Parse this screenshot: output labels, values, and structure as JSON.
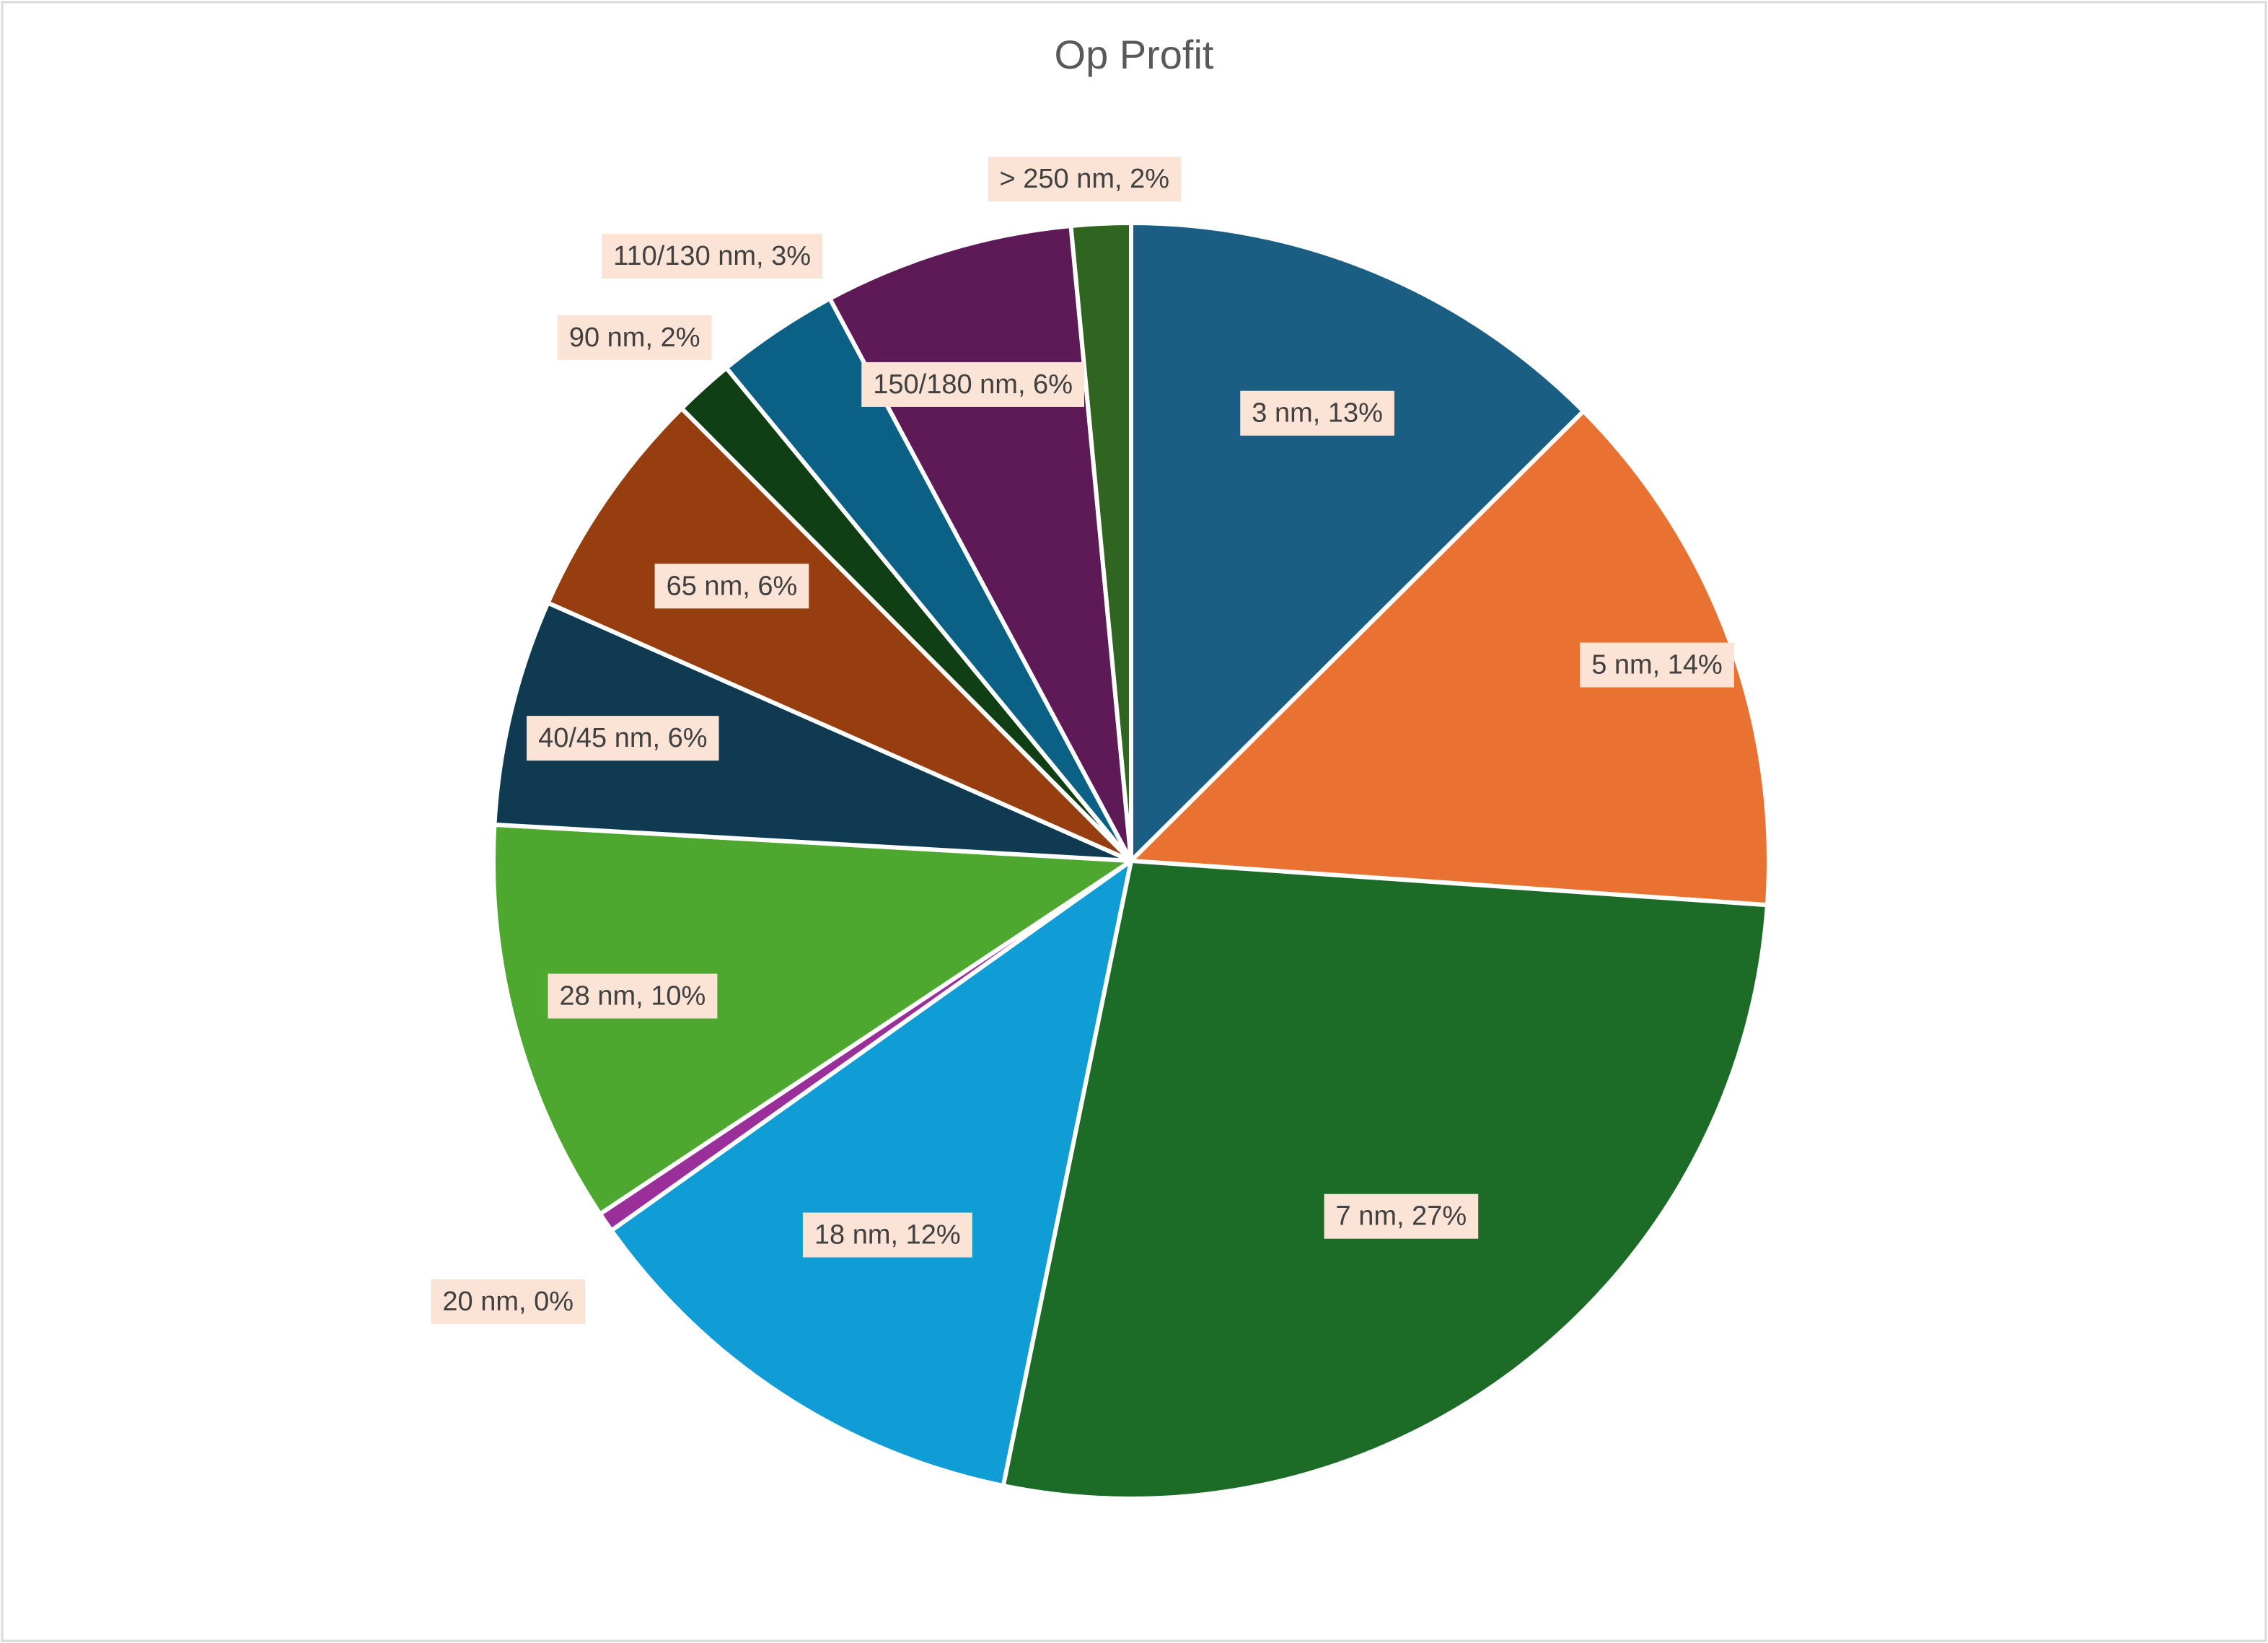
{
  "chart_data": {
    "type": "pie",
    "title": "Op Profit",
    "categories": [
      "3 nm",
      "5 nm",
      "7 nm",
      "18 nm",
      "20 nm",
      "28 nm",
      "40/45 nm",
      "65 nm",
      "90 nm",
      "110/130 nm",
      "150/180 nm",
      "> 250 nm"
    ],
    "values": [
      12.5,
      13.5,
      27.0,
      11.9,
      0.5,
      10.2,
      5.7,
      5.9,
      1.5,
      3.1,
      6.3,
      1.5
    ],
    "data_labels": [
      "3 nm, 13%",
      "5 nm, 14%",
      "7 nm, 27%",
      "18 nm, 12%",
      "20 nm, 0%",
      "28 nm, 10%",
      "40/45 nm, 6%",
      "65 nm, 6%",
      "90 nm, 2%",
      "110/130 nm, 3%",
      "150/180 nm, 6%",
      "> 250 nm, 2%"
    ],
    "colors": [
      "#1b5e84",
      "#e97132",
      "#1c6b26",
      "#109dd5",
      "#9b2f99",
      "#4ea72e",
      "#0f3a52",
      "#973e11",
      "#103f16",
      "#0b6085",
      "#5d1a57",
      "#306521"
    ],
    "label_background": "#fbe3d6",
    "slice_border": "#ffffff",
    "start_angle": "12 o'clock, clockwise",
    "legend": "none"
  }
}
